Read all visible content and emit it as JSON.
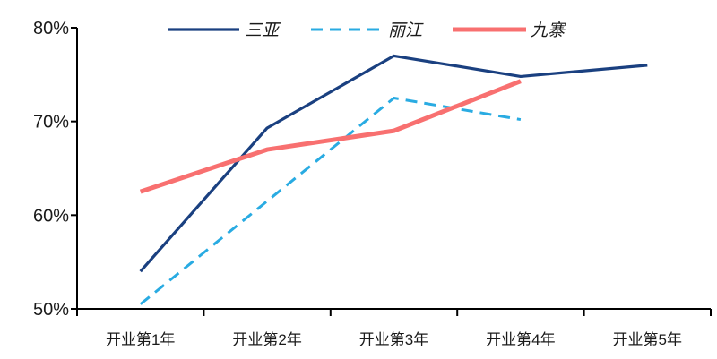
{
  "chart_data": {
    "type": "line",
    "title": "",
    "xlabel": "",
    "ylabel": "",
    "categories": [
      "开业第1年",
      "开业第2年",
      "开业第3年",
      "开业第4年",
      "开业第5年"
    ],
    "series": [
      {
        "name": "三亚",
        "color": "#1A4080",
        "line_style": "solid",
        "line_width": 3.2,
        "values": [
          54,
          69.3,
          77,
          74.8,
          76
        ]
      },
      {
        "name": "丽江",
        "color": "#29ABE2",
        "line_style": "dashed",
        "line_width": 3,
        "values": [
          50.5,
          61.5,
          72.5,
          70.2,
          null
        ]
      },
      {
        "name": "九寨",
        "color": "#F87070",
        "line_style": "solid",
        "line_width": 5,
        "values": [
          62.5,
          67,
          69,
          74.3,
          null
        ]
      }
    ],
    "ylim": [
      50,
      80
    ],
    "y_tick_values": [
      80,
      70,
      60,
      50
    ],
    "y_ticks": [
      "80%",
      "70%",
      "60%",
      "50%"
    ],
    "legend_position": "top",
    "grid": false,
    "axis_color": "#000000",
    "text_color": "#1a1a1a",
    "background_color": "#ffffff"
  }
}
